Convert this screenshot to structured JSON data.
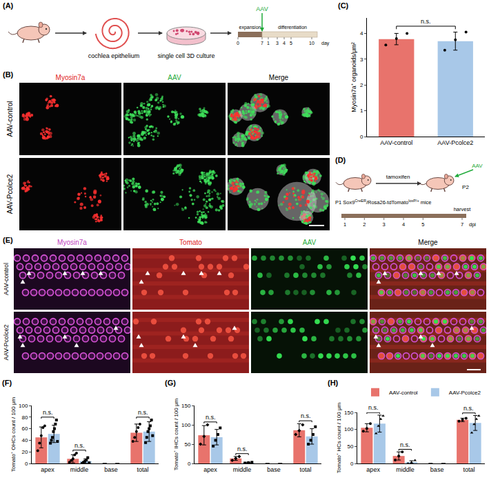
{
  "panel_labels": {
    "A": "(A)",
    "B": "(B)",
    "C": "(C)",
    "D": "(D)",
    "E": "(E)",
    "F": "(F)",
    "G": "(G)",
    "H": "(H)"
  },
  "A": {
    "steps": [
      "cochlea epithelium",
      "single cell 3D culture"
    ],
    "timeline": {
      "stages": [
        "expansion",
        "differentiation"
      ],
      "treatment": {
        "text": "AAV",
        "color": "#1faa3a"
      },
      "ticks": [
        "0",
        "7",
        "1",
        "3",
        "4",
        "5",
        "10"
      ],
      "unit": "day"
    }
  },
  "B": {
    "columns": [
      {
        "text": "Myosin7a",
        "color": "#e0201c"
      },
      {
        "text": "AAV",
        "color": "#1faa3a"
      },
      {
        "text": "Merge",
        "color": "#000000"
      }
    ],
    "rows": [
      "AAV-control",
      "AAV-Pcolce2"
    ]
  },
  "D": {
    "mouse": [
      {
        "text": "P1 Sox9"
      },
      {
        "sup": "CreER"
      },
      {
        "text": "/Rosa26-tdTomato"
      },
      {
        "sup": "loxP/+"
      },
      {
        "text": " mice"
      }
    ],
    "treatment": "tamoxifen",
    "age": "P2",
    "injection": {
      "text": "AAV",
      "color": "#1faa3a"
    },
    "timeline": {
      "ticks": [
        "1",
        "2",
        "3",
        "4",
        "5",
        "7"
      ],
      "unit": "dpi",
      "end": "harvest"
    }
  },
  "E": {
    "columns": [
      {
        "text": "Myosin7a",
        "color": "#c040c0"
      },
      {
        "text": "Tomato",
        "color": "#e0201c"
      },
      {
        "text": "AAV",
        "color": "#1faa3a"
      },
      {
        "text": "Merge",
        "color": "#000000"
      }
    ],
    "rows": [
      "AAV-control",
      "AAV-Pcolce2"
    ]
  },
  "chart_data": [
    {
      "type": "bar",
      "categories": [
        "AAV-control",
        "AAV-Pcolce2"
      ],
      "values": [
        3.78,
        3.7
      ],
      "errors": [
        0.22,
        0.35
      ],
      "points": [
        [
          3.55,
          3.8,
          4.0
        ],
        [
          3.35,
          3.75,
          4.05
        ]
      ],
      "colors": [
        "#e8736c",
        "#a8c8e8"
      ],
      "y_label": "Myosin7a⁺ organoids/μm²",
      "ylim": [
        0,
        4.6
      ],
      "yticks": [
        0,
        1,
        2,
        3,
        4
      ],
      "significance": "n.s.",
      "grid": false
    },
    {
      "type": "bar",
      "categories": [
        "apex",
        "middle",
        "base",
        "total"
      ],
      "y_label": "Tomato⁺ OHCs count / 100 μm",
      "ylim": [
        0,
        100
      ],
      "yticks": [
        0,
        20,
        40,
        60,
        80,
        100
      ],
      "grid": false,
      "significance": [
        "n.s.",
        "n.s.",
        null,
        "n.s."
      ],
      "series": [
        {
          "color": "#e8736c",
          "marker": "circle",
          "values": [
            45,
            8,
            0,
            53
          ],
          "errors": [
            18,
            7,
            0,
            15
          ],
          "points": [
            [
              22,
              35,
              48,
              62,
              65
            ],
            [
              2,
              5,
              8,
              15,
              18
            ],
            [],
            [
              38,
              45,
              55,
              62,
              68
            ]
          ]
        },
        {
          "color": "#a8c8e8",
          "marker": "square",
          "values": [
            51,
            4,
            0,
            55
          ],
          "errors": [
            15,
            4,
            0,
            17
          ],
          "points": [
            [
              35,
              40,
              45,
              55,
              60,
              68,
              75,
              38
            ],
            [
              0,
              2,
              4,
              6,
              10,
              1
            ],
            [],
            [
              36,
              45,
              55,
              60,
              65,
              75,
              48
            ]
          ]
        }
      ]
    },
    {
      "type": "bar",
      "categories": [
        "apex",
        "middle",
        "base",
        "total"
      ],
      "y_label": "Tomato⁺ IHCs count / 100 μm",
      "ylim": [
        0,
        150
      ],
      "yticks": [
        0,
        50,
        100,
        150
      ],
      "grid": false,
      "significance": [
        "n.s.",
        "n.s.",
        null,
        "n.s."
      ],
      "series": [
        {
          "color": "#e8736c",
          "marker": "diamond",
          "values": [
            73,
            13,
            0,
            86
          ],
          "errors": [
            25,
            5,
            0,
            17
          ],
          "points": [
            [
              50,
              70,
              100
            ],
            [
              8,
              13,
              18
            ],
            [],
            [
              75,
              85,
              100
            ]
          ]
        },
        {
          "color": "#a8c8e8",
          "marker": "square",
          "values": [
            68,
            2,
            0,
            70
          ],
          "errors": [
            20,
            1,
            0,
            20
          ],
          "points": [
            [
              45,
              60,
              75,
              92
            ],
            [
              1,
              2,
              3
            ],
            [],
            [
              50,
              60,
              75,
              95
            ]
          ]
        }
      ]
    },
    {
      "type": "bar",
      "categories": [
        "apex",
        "middle",
        "base",
        "total"
      ],
      "y_label": "Tomato⁺ HCs count / 100 μm",
      "ylim": [
        0,
        150
      ],
      "yticks": [
        0,
        50,
        100,
        150
      ],
      "grid": false,
      "legend": "upper right",
      "significance": [
        "n.s.",
        "n.s.",
        null,
        "n.s."
      ],
      "series": [
        {
          "name": "AAV-control",
          "color": "#e8736c",
          "marker": "circle",
          "values": [
            105,
            22,
            0,
            128
          ],
          "errors": [
            12,
            12,
            0,
            5
          ],
          "points": [
            [
              95,
              103,
              117
            ],
            [
              10,
              22,
              34
            ],
            [],
            [
              124,
              128,
              133
            ]
          ]
        },
        {
          "name": "AAV-Pcolce2",
          "color": "#a8c8e8",
          "marker": "triangle-up",
          "values": [
            117,
            4,
            0,
            119
          ],
          "errors": [
            25,
            4,
            0,
            22
          ],
          "points": [
            [
              88,
              110,
              130,
              140
            ],
            [
              0,
              3,
              9
            ],
            [],
            [
              90,
              115,
              130,
              140
            ]
          ]
        }
      ]
    }
  ]
}
